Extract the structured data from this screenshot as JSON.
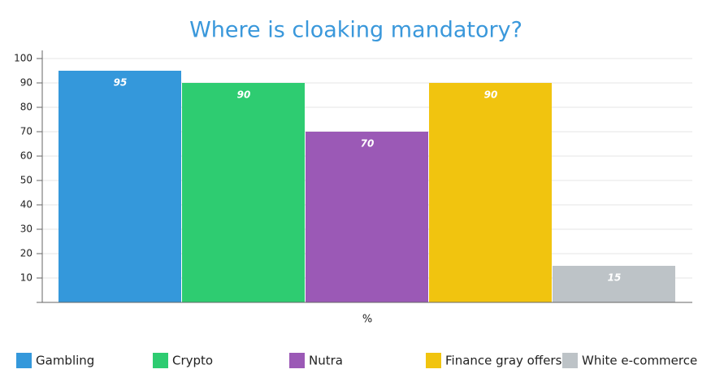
{
  "chart_data": {
    "type": "bar",
    "title": "Where is cloaking mandatory?",
    "categories": [
      "%"
    ],
    "series": [
      {
        "name": "Gambling",
        "color": "#3498db",
        "values": [
          95
        ]
      },
      {
        "name": "Crypto",
        "color": "#2ecc71",
        "values": [
          90
        ]
      },
      {
        "name": "Nutra",
        "color": "#9b59b6",
        "values": [
          70
        ]
      },
      {
        "name": "Finance gray offers",
        "color": "#f1c40f",
        "values": [
          90
        ]
      },
      {
        "name": "White e-commerce",
        "color": "#bdc3c7",
        "values": [
          15
        ]
      }
    ],
    "ylim": [
      0,
      100
    ],
    "yticks": [
      10,
      20,
      30,
      40,
      50,
      60,
      70,
      80,
      90,
      100
    ],
    "grid": true,
    "legend": "bottom"
  }
}
